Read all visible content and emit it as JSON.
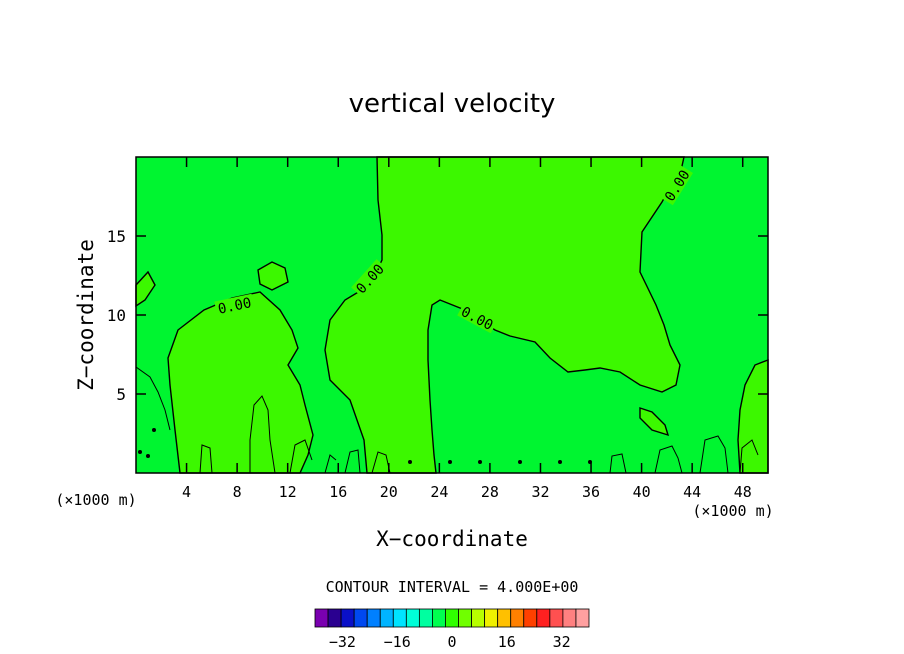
{
  "chart_data": {
    "type": "contour",
    "title": "vertical velocity",
    "xlabel": "X−coordinate",
    "ylabel": "Z−coordinate",
    "x_unit_left": "(×1000 m)",
    "x_unit_right": "(×1000 m)",
    "xlim": [
      0,
      50
    ],
    "ylim": [
      0,
      20
    ],
    "x_ticks": [
      4,
      8,
      12,
      16,
      20,
      24,
      28,
      32,
      36,
      40,
      44,
      48
    ],
    "y_ticks": [
      5,
      10,
      15
    ],
    "contour_level": 0,
    "contour_label": "0.00",
    "contour_labels": [
      {
        "text": "0.00",
        "x": 7.8,
        "y": 10.6
      },
      {
        "text": "0.00",
        "x": 18.5,
        "y": 12.3
      },
      {
        "text": "0.00",
        "x": 27.0,
        "y": 9.8
      },
      {
        "text": "0.00",
        "x": 42.8,
        "y": 18.2
      }
    ],
    "regions": [
      {
        "level": "positive",
        "color": "#3cf800"
      },
      {
        "level": "near-zero",
        "color": "#00f530"
      }
    ],
    "contour_interval_text": "CONTOUR INTERVAL = 4.000E+00",
    "colorbar": {
      "colors": [
        "#7a00b0",
        "#2a0090",
        "#0a10c8",
        "#0048f0",
        "#0080ff",
        "#00b4ff",
        "#00e4ff",
        "#00ffd8",
        "#00ffa0",
        "#00ff50",
        "#30ff00",
        "#70ff00",
        "#b8ff00",
        "#f0f000",
        "#ffc000",
        "#ff8000",
        "#ff4000",
        "#ff2020",
        "#ff5050",
        "#ff8080",
        "#ffa0a0"
      ],
      "tick_labels": [
        "−32",
        "−16",
        "0",
        "16",
        "32"
      ],
      "tick_values": [
        -32,
        -16,
        0,
        16,
        32
      ],
      "min": -40,
      "max": 40
    }
  }
}
